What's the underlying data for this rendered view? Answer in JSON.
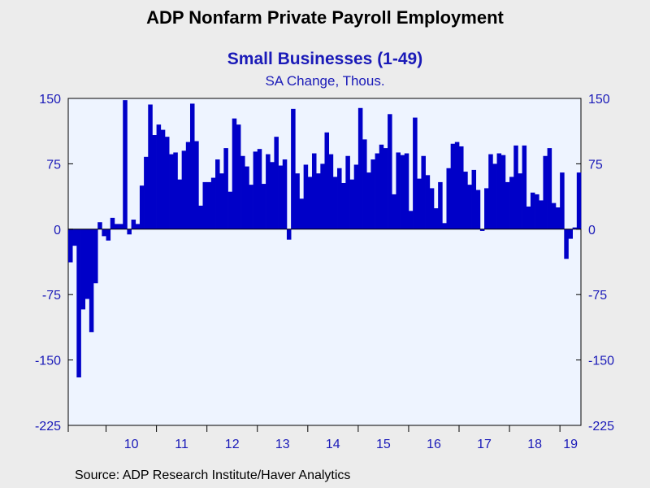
{
  "chart_data": {
    "type": "bar",
    "title": "ADP Nonfarm Private Payroll Employment",
    "subtitle": "Small Businesses (1-49)",
    "subtitle2": "SA Change, Thous.",
    "source": "Source:  ADP Research Institute/Haver Analytics",
    "ylim": [
      -225,
      150
    ],
    "yticks": [
      150,
      75,
      0,
      -75,
      -150,
      -225
    ],
    "start_month": "2009-04",
    "x_labels": [
      "10",
      "11",
      "12",
      "13",
      "14",
      "15",
      "16",
      "17",
      "18",
      "19"
    ],
    "grid": false,
    "bar_color": "#0000c8",
    "plot_background": "#eef4ff",
    "series": [
      {
        "values": [
          -38,
          -19,
          -170,
          -92,
          -80,
          -118,
          -62,
          8,
          -8,
          -13,
          13,
          6,
          6,
          148,
          -6,
          11,
          6,
          50,
          83,
          143,
          108,
          120,
          114,
          106,
          86,
          88,
          57,
          90,
          100,
          144,
          101,
          27,
          54,
          54,
          59,
          80,
          64,
          93,
          43,
          127,
          120,
          84,
          72,
          51,
          89,
          92,
          52,
          86,
          77,
          106,
          73,
          80,
          -12,
          138,
          64,
          35,
          74,
          60,
          87,
          64,
          75,
          111,
          86,
          60,
          70,
          53,
          84,
          57,
          74,
          139,
          103,
          65,
          80,
          87,
          97,
          93,
          132,
          40,
          88,
          85,
          87,
          21,
          128,
          58,
          84,
          62,
          47,
          24,
          54,
          7,
          70,
          98,
          100,
          95,
          66,
          51,
          68,
          45,
          -2,
          47,
          86,
          75,
          87,
          85,
          54,
          60,
          96,
          64,
          96,
          26,
          42,
          40,
          33,
          84,
          93,
          30,
          25,
          65,
          -34,
          -11,
          2,
          65
        ]
      }
    ]
  }
}
